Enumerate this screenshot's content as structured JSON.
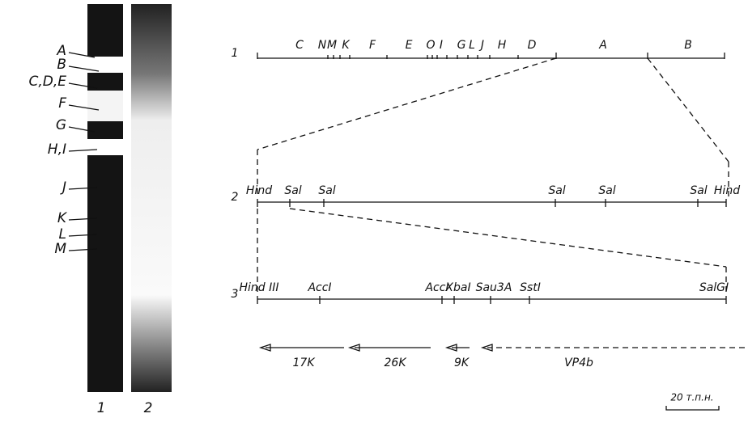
{
  "gel": {
    "band_labels": [
      "A",
      "B",
      "C,D,E",
      "F",
      "G",
      "H,I",
      "J",
      "K",
      "L",
      "M"
    ],
    "lane_labels": [
      "1",
      "2"
    ]
  },
  "map": {
    "rows": [
      {
        "label": "1",
        "sites": [
          "C",
          "N",
          "M",
          "K",
          "F",
          "E",
          "O",
          "I",
          "G",
          "L",
          "J",
          "H",
          "D",
          "A",
          "B"
        ]
      },
      {
        "label": "2",
        "sites": [
          "Hind",
          "Sal",
          "Sal",
          "Sal",
          "Sal",
          "Sal",
          "Hind"
        ]
      },
      {
        "label": "3",
        "sites": [
          "Hind III",
          "AccI",
          "AccI",
          "XbaI",
          "Sau3A",
          "SstI",
          "SalGI"
        ]
      }
    ],
    "genes": [
      "17K",
      "26K",
      "9K",
      "VP4b"
    ],
    "scale_bar": "20 т.п.н."
  }
}
